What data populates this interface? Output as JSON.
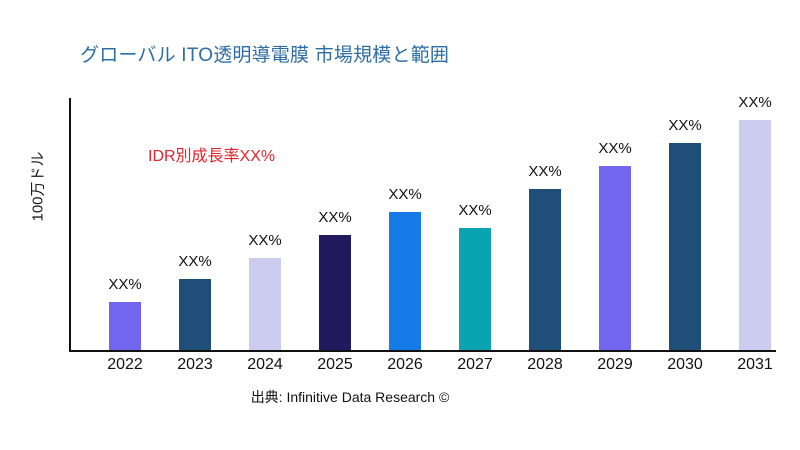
{
  "title": "グローバル ITO透明導電膜 市場規模と範囲",
  "annotation": "IDR別成長率XX%",
  "source_note": "出典: Infinitive Data Research ©",
  "colors": {
    "title": "#2E6DA4",
    "annotation": "#E3242B",
    "axis": "#111111",
    "background": "#FFFFFF"
  },
  "chart_data": {
    "type": "bar",
    "title": "グローバル ITO透明導電膜 市場規模と範囲",
    "xlabel": "",
    "ylabel": "100万ドル",
    "categories": [
      "2022",
      "2023",
      "2024",
      "2025",
      "2026",
      "2027",
      "2028",
      "2029",
      "2030",
      "2031"
    ],
    "values": [
      21,
      31,
      40,
      50,
      60,
      53,
      70,
      80,
      90,
      100
    ],
    "bar_labels": [
      "XX%",
      "XX%",
      "XX%",
      "XX%",
      "XX%",
      "XX%",
      "XX%",
      "XX%",
      "XX%",
      "XX%"
    ],
    "bar_colors": [
      "#7366EE",
      "#1F4E79",
      "#CACDEF",
      "#211A5E",
      "#157BE8",
      "#0AA3B2",
      "#1F4E79",
      "#7366EE",
      "#1F4E79",
      "#CACDEF"
    ],
    "ylim": [
      0,
      100
    ],
    "grid": false,
    "legend": null,
    "annotations": [
      "IDR別成長率XX%"
    ]
  }
}
